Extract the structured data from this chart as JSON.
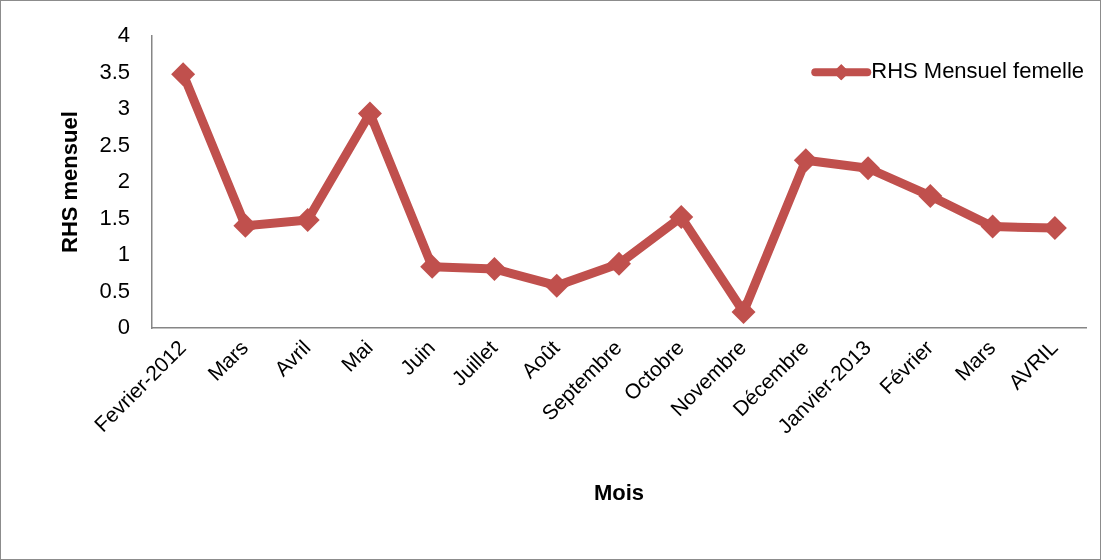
{
  "chart_data": {
    "type": "line",
    "xlabel": "Mois",
    "ylabel": "RHS mensuel",
    "categories": [
      "Fevrier-2012",
      "Mars",
      "Avril",
      "Mai",
      "Juin",
      "Juillet",
      "Août",
      "Septembre",
      "Octobre",
      "Novembre",
      "Décembre",
      "Janvier-2013",
      "Février",
      "Mars",
      "AVRIL"
    ],
    "series": [
      {
        "name": "RHS Mensuel femelle",
        "color": "#c0504d",
        "values": [
          3.48,
          1.4,
          1.48,
          2.94,
          0.84,
          0.81,
          0.58,
          0.88,
          1.52,
          0.22,
          2.3,
          2.19,
          1.81,
          1.39,
          1.37
        ]
      }
    ],
    "ylim": [
      0,
      4
    ],
    "yticks": [
      0,
      0.5,
      1,
      1.5,
      2,
      2.5,
      3,
      3.5,
      4
    ],
    "grid": false,
    "legend": "top right",
    "marker": "diamond",
    "line_style": "solid"
  }
}
